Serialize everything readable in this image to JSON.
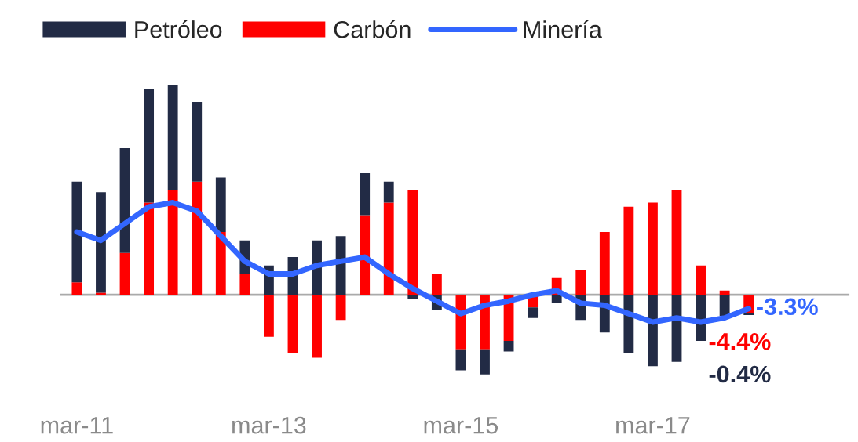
{
  "chart_data": {
    "type": "bar",
    "stacked": true,
    "legend": "top",
    "grid": false,
    "categories": [
      "mar-11",
      null,
      null,
      null,
      null,
      null,
      null,
      null,
      "mar-13",
      null,
      null,
      null,
      null,
      null,
      null,
      null,
      "mar-15",
      null,
      null,
      null,
      null,
      null,
      null,
      null,
      "mar-17",
      null,
      null,
      null,
      null
    ],
    "series": [
      {
        "name": "Carbón",
        "color": "#ff0000",
        "values": [
          3,
          0.5,
          10,
          22,
          25,
          27,
          15,
          5,
          -10,
          -14,
          -15,
          -6,
          19,
          22,
          25,
          5,
          -13,
          -13,
          -11,
          -3,
          4,
          6,
          15,
          21,
          22,
          25,
          7,
          1,
          -4.4
        ],
        "value_labels": [
          null,
          null,
          null,
          null,
          null,
          null,
          null,
          null,
          null,
          null,
          null,
          null,
          null,
          null,
          null,
          null,
          null,
          null,
          null,
          null,
          null,
          null,
          null,
          null,
          null,
          null,
          null,
          null,
          "-4.4%"
        ]
      },
      {
        "name": "Petróleo",
        "color": "#222b45",
        "values": [
          24,
          24,
          25,
          27,
          25,
          19,
          13,
          8,
          7,
          9,
          13,
          14,
          10,
          5,
          -1,
          -3.5,
          -5,
          -6,
          -2.5,
          -2.5,
          -2,
          -6,
          -9,
          -14,
          -17,
          -16,
          -11,
          -5,
          -0.4
        ],
        "value_labels": [
          null,
          null,
          null,
          null,
          null,
          null,
          null,
          null,
          null,
          null,
          null,
          null,
          null,
          null,
          null,
          null,
          null,
          null,
          null,
          null,
          null,
          null,
          null,
          null,
          null,
          null,
          null,
          null,
          "-0.4%"
        ]
      },
      {
        "name": "Minería",
        "type": "line",
        "color": "#3366ff",
        "values": [
          15,
          13,
          17,
          21,
          22,
          20,
          14,
          8,
          5,
          5,
          7,
          8,
          9,
          5,
          1.5,
          -1.5,
          -4.5,
          -2.5,
          -1.5,
          0,
          1,
          -2,
          -2.5,
          -4.5,
          -6.5,
          -5.5,
          -6.5,
          -5.5,
          -3.3
        ],
        "value_labels": [
          null,
          null,
          null,
          null,
          null,
          null,
          null,
          null,
          null,
          null,
          null,
          null,
          null,
          null,
          null,
          null,
          null,
          null,
          null,
          null,
          null,
          null,
          null,
          null,
          null,
          null,
          null,
          null,
          "-3.3%"
        ]
      }
    ]
  }
}
